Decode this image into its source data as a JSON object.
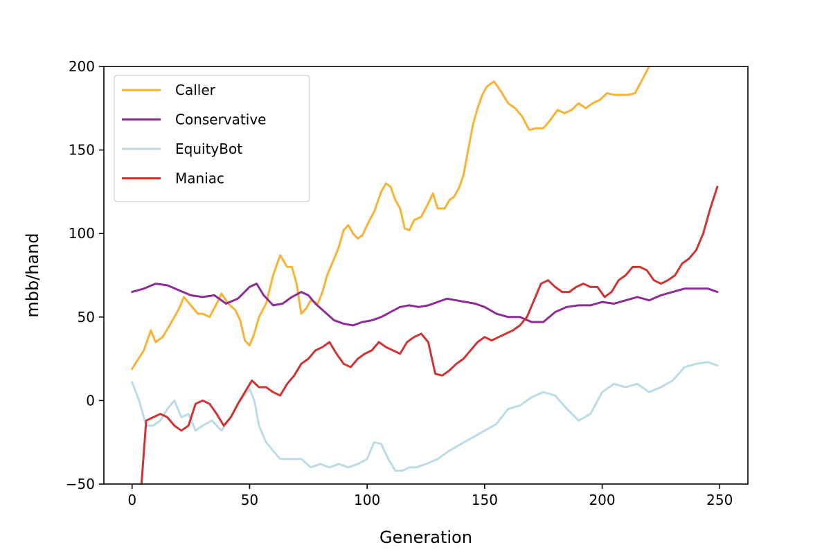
{
  "chart_data": {
    "type": "line",
    "title": "",
    "xlabel": "Generation",
    "ylabel": "mbb/hand",
    "xlim": [
      -12,
      262
    ],
    "ylim": [
      -50,
      200
    ],
    "xticks": [
      0,
      50,
      100,
      150,
      200,
      250
    ],
    "yticks": [
      -50,
      0,
      50,
      100,
      150,
      200
    ],
    "xtick_labels": [
      "0",
      "50",
      "100",
      "150",
      "200",
      "250"
    ],
    "ytick_labels": [
      "−50",
      "0",
      "50",
      "100",
      "150",
      "200"
    ],
    "grid": false,
    "legend_position": "top-left",
    "series": [
      {
        "name": "Caller",
        "color": "#f9b233",
        "x": [
          0,
          5,
          8,
          10,
          13,
          16,
          20,
          22,
          25,
          28,
          30,
          33,
          36,
          38,
          41,
          44,
          46,
          48,
          50,
          52,
          54,
          57,
          60,
          63,
          66,
          68,
          70,
          72,
          74,
          76,
          79,
          81,
          83,
          86,
          88,
          90,
          92,
          94,
          96,
          98,
          100,
          103,
          106,
          108,
          110,
          112,
          114,
          116,
          118,
          120,
          123,
          126,
          128,
          130,
          133,
          135,
          137,
          139,
          141,
          143,
          145,
          147,
          149,
          151,
          154,
          157,
          160,
          163,
          166,
          169,
          172,
          175,
          178,
          181,
          184,
          187,
          190,
          193,
          196,
          199,
          202,
          205,
          208,
          211,
          214,
          217,
          220
        ],
        "y": [
          19,
          30,
          42,
          35,
          38,
          45,
          55,
          62,
          57,
          52,
          52,
          50,
          58,
          64,
          58,
          54,
          48,
          36,
          33,
          40,
          50,
          58,
          75,
          87,
          80,
          80,
          70,
          52,
          55,
          60,
          58,
          65,
          75,
          85,
          92,
          102,
          105,
          100,
          97,
          99,
          105,
          113,
          125,
          130,
          128,
          120,
          115,
          103,
          102,
          108,
          110,
          118,
          124,
          115,
          115,
          120,
          122,
          127,
          135,
          150,
          165,
          175,
          183,
          188,
          191,
          185,
          178,
          175,
          170,
          162,
          163,
          163,
          168,
          174,
          172,
          174,
          178,
          175,
          178,
          180,
          184,
          183,
          183,
          183,
          184,
          192,
          200
        ]
      },
      {
        "name": "Conservative",
        "color": "#8e2c96",
        "x": [
          0,
          5,
          10,
          15,
          20,
          25,
          30,
          35,
          40,
          45,
          50,
          53,
          56,
          60,
          64,
          68,
          72,
          75,
          78,
          82,
          86,
          90,
          94,
          98,
          102,
          106,
          110,
          114,
          118,
          122,
          126,
          130,
          134,
          138,
          142,
          146,
          150,
          155,
          160,
          165,
          170,
          175,
          180,
          185,
          190,
          195,
          200,
          205,
          210,
          215,
          220,
          225,
          230,
          235,
          240,
          245,
          249
        ],
        "y": [
          65,
          67,
          70,
          69,
          66,
          63,
          62,
          63,
          58,
          61,
          68,
          70,
          63,
          57,
          58,
          62,
          65,
          63,
          58,
          53,
          48,
          46,
          45,
          47,
          48,
          50,
          53,
          56,
          57,
          56,
          57,
          59,
          61,
          60,
          59,
          58,
          56,
          52,
          50,
          50,
          47,
          47,
          53,
          56,
          57,
          57,
          59,
          58,
          60,
          62,
          60,
          63,
          65,
          67,
          67,
          67,
          65
        ]
      },
      {
        "name": "EquityBot",
        "color": "#b9dce8",
        "x": [
          0,
          3,
          6,
          9,
          12,
          15,
          18,
          21,
          24,
          27,
          30,
          34,
          38,
          42,
          46,
          50,
          52,
          54,
          57,
          60,
          63,
          67,
          72,
          76,
          80,
          84,
          88,
          92,
          96,
          100,
          103,
          106,
          109,
          112,
          115,
          118,
          121,
          125,
          130,
          135,
          140,
          145,
          150,
          155,
          160,
          165,
          170,
          175,
          180,
          185,
          190,
          195,
          200,
          205,
          210,
          215,
          220,
          225,
          230,
          235,
          240,
          245,
          249
        ],
        "y": [
          11,
          0,
          -15,
          -15,
          -12,
          -5,
          0,
          -10,
          -8,
          -18,
          -15,
          -12,
          -18,
          -10,
          0,
          7,
          0,
          -15,
          -25,
          -30,
          -35,
          -35,
          -35,
          -40,
          -38,
          -40,
          -38,
          -40,
          -38,
          -35,
          -25,
          -26,
          -35,
          -42,
          -42,
          -40,
          -40,
          -38,
          -35,
          -30,
          -26,
          -22,
          -18,
          -14,
          -5,
          -3,
          2,
          5,
          3,
          -5,
          -12,
          -8,
          5,
          10,
          8,
          10,
          5,
          8,
          12,
          20,
          22,
          23,
          21
        ]
      },
      {
        "name": "Maniac",
        "color": "#d13232",
        "x": [
          4,
          6,
          9,
          12,
          15,
          18,
          21,
          24,
          27,
          30,
          33,
          36,
          39,
          42,
          45,
          48,
          51,
          54,
          57,
          60,
          63,
          66,
          69,
          72,
          75,
          78,
          81,
          84,
          87,
          90,
          93,
          96,
          99,
          102,
          105,
          108,
          111,
          114,
          117,
          120,
          123,
          126,
          129,
          132,
          135,
          138,
          141,
          144,
          147,
          150,
          153,
          156,
          159,
          162,
          165,
          168,
          171,
          174,
          177,
          180,
          183,
          186,
          189,
          192,
          195,
          198,
          201,
          204,
          207,
          210,
          213,
          216,
          219,
          222,
          225,
          228,
          231,
          234,
          237,
          240,
          243,
          246,
          249
        ],
        "y": [
          -50,
          -12,
          -10,
          -8,
          -10,
          -15,
          -18,
          -15,
          -2,
          0,
          -2,
          -8,
          -15,
          -10,
          -2,
          5,
          12,
          8,
          8,
          5,
          3,
          10,
          15,
          22,
          25,
          30,
          32,
          35,
          28,
          22,
          20,
          25,
          28,
          30,
          35,
          32,
          30,
          28,
          35,
          38,
          40,
          35,
          16,
          15,
          18,
          22,
          25,
          30,
          35,
          38,
          36,
          38,
          40,
          42,
          45,
          50,
          60,
          70,
          72,
          68,
          65,
          65,
          68,
          70,
          68,
          68,
          62,
          65,
          72,
          75,
          80,
          80,
          78,
          72,
          70,
          72,
          75,
          82,
          85,
          90,
          100,
          115,
          128
        ]
      }
    ]
  }
}
